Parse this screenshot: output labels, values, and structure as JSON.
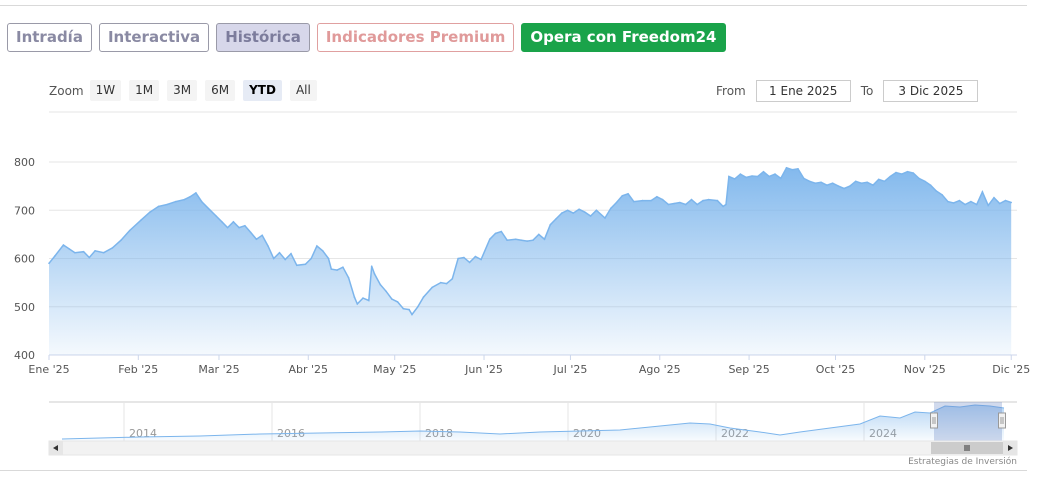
{
  "tabs": [
    {
      "label": "Intradía"
    },
    {
      "label": "Interactiva"
    },
    {
      "label": "Histórica"
    },
    {
      "label": "Indicadores Premium"
    },
    {
      "label": "Opera con Freedom24"
    }
  ],
  "zoom": {
    "label": "Zoom",
    "buttons": [
      "1W",
      "1M",
      "3M",
      "6M",
      "YTD",
      "All"
    ],
    "selected": "YTD"
  },
  "range": {
    "from_label": "From",
    "from_value": "1 Ene 2025",
    "to_label": "To",
    "to_value": "3 Dic 2025"
  },
  "credit": "Estrategias de Inversión",
  "colors": {
    "line": "#7cb5ec",
    "cta": "#1aa34a",
    "active_tab": "#d7d7ea"
  },
  "chart_data": {
    "type": "area",
    "ylim": [
      400,
      800
    ],
    "yticks": [
      400,
      500,
      600,
      700,
      800
    ],
    "xlim": [
      "2025-01-01",
      "2025-12-03"
    ],
    "xticks": [
      {
        "date": "2025-01-01",
        "label": "Ene '25"
      },
      {
        "date": "2025-02-01",
        "label": "Feb '25"
      },
      {
        "date": "2025-03-01",
        "label": "Mar '25"
      },
      {
        "date": "2025-04-01",
        "label": "Abr '25"
      },
      {
        "date": "2025-05-01",
        "label": "May '25"
      },
      {
        "date": "2025-06-01",
        "label": "Jun '25"
      },
      {
        "date": "2025-07-01",
        "label": "Jul '25"
      },
      {
        "date": "2025-08-01",
        "label": "Ago '25"
      },
      {
        "date": "2025-09-01",
        "label": "Sep '25"
      },
      {
        "date": "2025-10-01",
        "label": "Oct '25"
      },
      {
        "date": "2025-11-01",
        "label": "Nov '25"
      },
      {
        "date": "2025-12-01",
        "label": "Dic '25"
      }
    ],
    "grid": true,
    "series": [
      {
        "points": [
          [
            "2025-01-01",
            590
          ],
          [
            "2025-01-03",
            605
          ],
          [
            "2025-01-06",
            628
          ],
          [
            "2025-01-08",
            620
          ],
          [
            "2025-01-10",
            612
          ],
          [
            "2025-01-13",
            614
          ],
          [
            "2025-01-15",
            602
          ],
          [
            "2025-01-17",
            616
          ],
          [
            "2025-01-20",
            612
          ],
          [
            "2025-01-23",
            622
          ],
          [
            "2025-01-26",
            638
          ],
          [
            "2025-01-29",
            658
          ],
          [
            "2025-02-02",
            680
          ],
          [
            "2025-02-05",
            696
          ],
          [
            "2025-02-08",
            708
          ],
          [
            "2025-02-11",
            712
          ],
          [
            "2025-02-14",
            718
          ],
          [
            "2025-02-17",
            722
          ],
          [
            "2025-02-19",
            728
          ],
          [
            "2025-02-21",
            736
          ],
          [
            "2025-02-23",
            718
          ],
          [
            "2025-02-26",
            700
          ],
          [
            "2025-02-28",
            688
          ],
          [
            "2025-03-02",
            676
          ],
          [
            "2025-03-04",
            664
          ],
          [
            "2025-03-06",
            676
          ],
          [
            "2025-03-08",
            664
          ],
          [
            "2025-03-10",
            668
          ],
          [
            "2025-03-12",
            654
          ],
          [
            "2025-03-14",
            640
          ],
          [
            "2025-03-16",
            648
          ],
          [
            "2025-03-18",
            626
          ],
          [
            "2025-03-20",
            600
          ],
          [
            "2025-03-22",
            612
          ],
          [
            "2025-03-24",
            598
          ],
          [
            "2025-03-26",
            610
          ],
          [
            "2025-03-28",
            586
          ],
          [
            "2025-03-31",
            588
          ],
          [
            "2025-04-02",
            600
          ],
          [
            "2025-04-04",
            626
          ],
          [
            "2025-04-06",
            616
          ],
          [
            "2025-04-08",
            600
          ],
          [
            "2025-04-09",
            578
          ],
          [
            "2025-04-11",
            576
          ],
          [
            "2025-04-13",
            582
          ],
          [
            "2025-04-15",
            560
          ],
          [
            "2025-04-17",
            520
          ],
          [
            "2025-04-18",
            506
          ],
          [
            "2025-04-20",
            518
          ],
          [
            "2025-04-22",
            513
          ],
          [
            "2025-04-23",
            584
          ],
          [
            "2025-04-24",
            568
          ],
          [
            "2025-04-26",
            546
          ],
          [
            "2025-04-28",
            532
          ],
          [
            "2025-04-30",
            516
          ],
          [
            "2025-05-02",
            510
          ],
          [
            "2025-05-04",
            496
          ],
          [
            "2025-05-06",
            494
          ],
          [
            "2025-05-07",
            484
          ],
          [
            "2025-05-09",
            500
          ],
          [
            "2025-05-11",
            520
          ],
          [
            "2025-05-14",
            540
          ],
          [
            "2025-05-17",
            550
          ],
          [
            "2025-05-19",
            548
          ],
          [
            "2025-05-21",
            558
          ],
          [
            "2025-05-23",
            600
          ],
          [
            "2025-05-25",
            602
          ],
          [
            "2025-05-27",
            592
          ],
          [
            "2025-05-29",
            604
          ],
          [
            "2025-05-31",
            598
          ],
          [
            "2025-06-03",
            640
          ],
          [
            "2025-06-05",
            652
          ],
          [
            "2025-06-07",
            656
          ],
          [
            "2025-06-09",
            638
          ],
          [
            "2025-06-12",
            640
          ],
          [
            "2025-06-14",
            638
          ],
          [
            "2025-06-16",
            636
          ],
          [
            "2025-06-18",
            638
          ],
          [
            "2025-06-20",
            650
          ],
          [
            "2025-06-22",
            640
          ],
          [
            "2025-06-24",
            670
          ],
          [
            "2025-06-26",
            682
          ],
          [
            "2025-06-28",
            694
          ],
          [
            "2025-06-30",
            700
          ],
          [
            "2025-07-02",
            694
          ],
          [
            "2025-07-04",
            702
          ],
          [
            "2025-07-06",
            696
          ],
          [
            "2025-07-08",
            688
          ],
          [
            "2025-07-10",
            700
          ],
          [
            "2025-07-13",
            684
          ],
          [
            "2025-07-15",
            704
          ],
          [
            "2025-07-17",
            716
          ],
          [
            "2025-07-19",
            730
          ],
          [
            "2025-07-21",
            734
          ],
          [
            "2025-07-23",
            718
          ],
          [
            "2025-07-26",
            720
          ],
          [
            "2025-07-29",
            720
          ],
          [
            "2025-07-31",
            728
          ],
          [
            "2025-08-02",
            722
          ],
          [
            "2025-08-04",
            712
          ],
          [
            "2025-08-06",
            714
          ],
          [
            "2025-08-08",
            716
          ],
          [
            "2025-08-10",
            712
          ],
          [
            "2025-08-12",
            722
          ],
          [
            "2025-08-14",
            712
          ],
          [
            "2025-08-16",
            720
          ],
          [
            "2025-08-18",
            722
          ],
          [
            "2025-08-21",
            720
          ],
          [
            "2025-08-23",
            708
          ],
          [
            "2025-08-24",
            712
          ],
          [
            "2025-08-25",
            770
          ],
          [
            "2025-08-27",
            765
          ],
          [
            "2025-08-29",
            775
          ],
          [
            "2025-08-31",
            768
          ],
          [
            "2025-09-02",
            771
          ],
          [
            "2025-09-04",
            770
          ],
          [
            "2025-09-06",
            780
          ],
          [
            "2025-09-08",
            770
          ],
          [
            "2025-09-10",
            775
          ],
          [
            "2025-09-12",
            766
          ],
          [
            "2025-09-14",
            788
          ],
          [
            "2025-09-16",
            784
          ],
          [
            "2025-09-18",
            786
          ],
          [
            "2025-09-20",
            766
          ],
          [
            "2025-09-22",
            760
          ],
          [
            "2025-09-24",
            756
          ],
          [
            "2025-09-26",
            758
          ],
          [
            "2025-09-28",
            752
          ],
          [
            "2025-09-30",
            756
          ],
          [
            "2025-10-02",
            750
          ],
          [
            "2025-10-04",
            745
          ],
          [
            "2025-10-06",
            750
          ],
          [
            "2025-10-08",
            760
          ],
          [
            "2025-10-10",
            756
          ],
          [
            "2025-10-12",
            758
          ],
          [
            "2025-10-14",
            752
          ],
          [
            "2025-10-16",
            764
          ],
          [
            "2025-10-18",
            760
          ],
          [
            "2025-10-20",
            770
          ],
          [
            "2025-10-22",
            778
          ],
          [
            "2025-10-24",
            775
          ],
          [
            "2025-10-26",
            780
          ],
          [
            "2025-10-28",
            777
          ],
          [
            "2025-10-30",
            766
          ],
          [
            "2025-11-01",
            760
          ],
          [
            "2025-11-03",
            752
          ],
          [
            "2025-11-05",
            740
          ],
          [
            "2025-11-07",
            732
          ],
          [
            "2025-11-09",
            718
          ],
          [
            "2025-11-11",
            715
          ],
          [
            "2025-11-13",
            720
          ],
          [
            "2025-11-15",
            712
          ],
          [
            "2025-11-17",
            718
          ],
          [
            "2025-11-19",
            712
          ],
          [
            "2025-11-21",
            738
          ],
          [
            "2025-11-23",
            710
          ],
          [
            "2025-11-25",
            726
          ],
          [
            "2025-11-27",
            714
          ],
          [
            "2025-11-29",
            720
          ],
          [
            "2025-12-01",
            716
          ]
        ]
      }
    ],
    "navigator": {
      "xticks": [
        "2014",
        "2016",
        "2018",
        "2020",
        "2022",
        "2024"
      ],
      "selection": [
        "2025-01-01",
        "2025-12-03"
      ]
    }
  }
}
